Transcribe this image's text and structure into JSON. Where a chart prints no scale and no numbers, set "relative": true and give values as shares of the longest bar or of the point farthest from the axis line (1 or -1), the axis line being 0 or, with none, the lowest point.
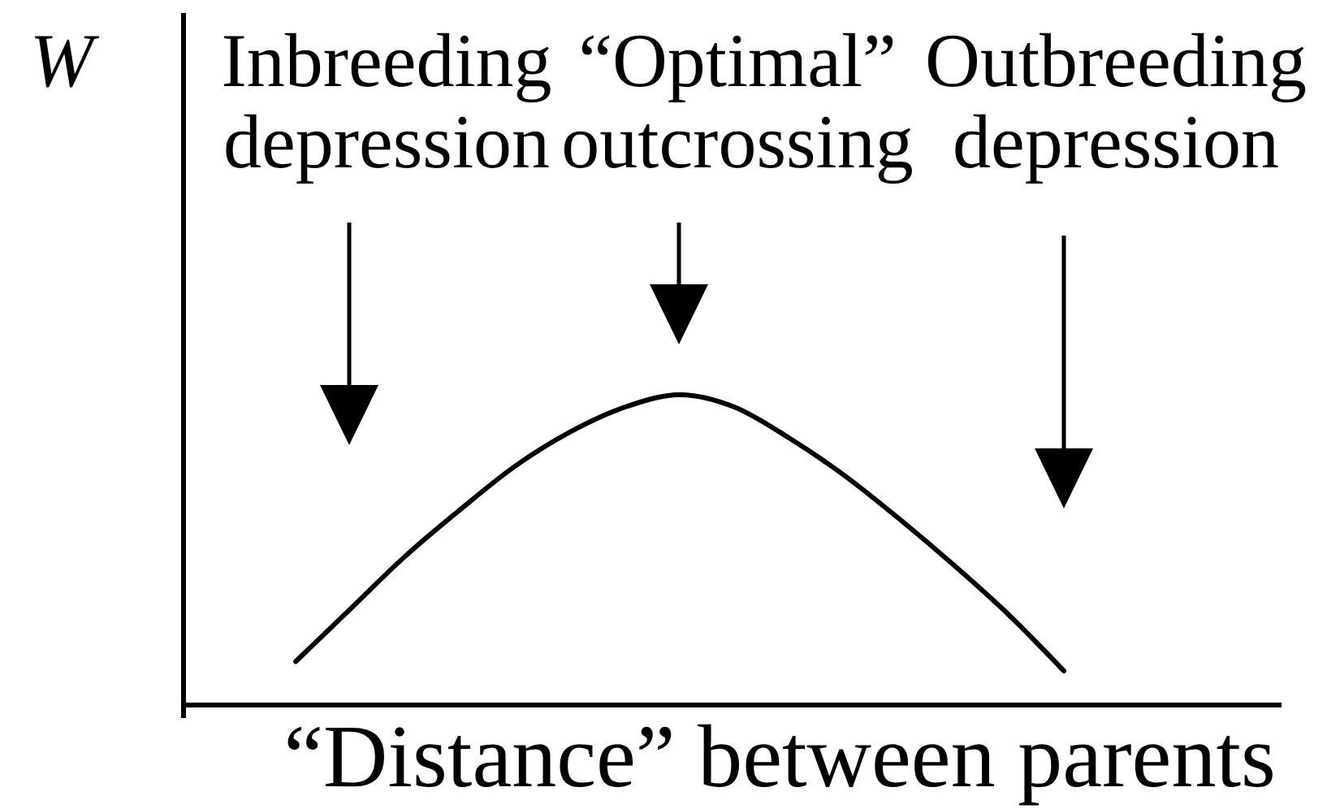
{
  "chart_data": {
    "type": "line",
    "relative": true,
    "ylabel": "W",
    "xlabel": "“Distance” between parents",
    "annotations": [
      "Inbreeding depression",
      "“Optimal” outcrossing",
      "Outbreeding depression"
    ],
    "categories": [
      null,
      null,
      null,
      null,
      null,
      null,
      null,
      null,
      null,
      null,
      null,
      null,
      null,
      null,
      null
    ],
    "series": [
      {
        "color": "#000000",
        "values": [
          0.14,
          0.31,
          0.48,
          0.63,
          0.77,
          0.88,
          0.96,
          1,
          0.96,
          0.86,
          0.74,
          0.6,
          0.45,
          0.29,
          0.11
        ]
      }
    ]
  }
}
